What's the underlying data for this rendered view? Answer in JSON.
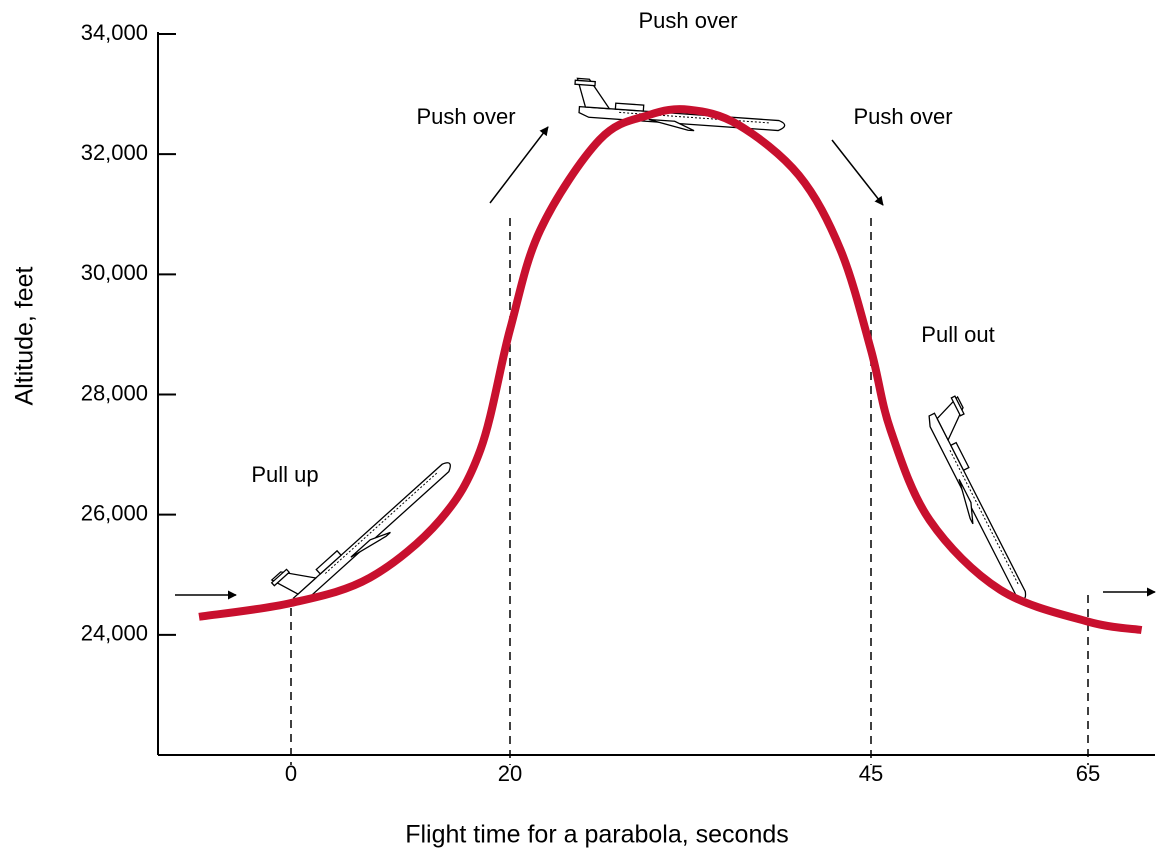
{
  "chart_data": {
    "type": "line",
    "x_label": "Flight time for a parabola, seconds",
    "y_label": "Altitude, feet",
    "annotations": [
      "Push over",
      "Push over",
      "Push over",
      "Pull up",
      "Pull out"
    ],
    "xlim": [
      -12,
      71
    ],
    "ylim": [
      22000,
      34000
    ],
    "xticks": [
      0,
      20,
      45,
      65
    ],
    "yticks": [
      {
        "value": 24000,
        "label": "24,000"
      },
      {
        "value": 26000,
        "label": "26,000"
      },
      {
        "value": 28000,
        "label": "28,000"
      },
      {
        "value": 30000,
        "label": "30,000"
      },
      {
        "value": 32000,
        "label": "32,000"
      },
      {
        "value": 34000,
        "label": "34,000"
      }
    ],
    "series": [
      {
        "color": "#c8102e",
        "x": [
          -8.3,
          0,
          7.2,
          13.6,
          17.3,
          20,
          22.1,
          26.2,
          29.6,
          32.4,
          35.8,
          40,
          42.9,
          45,
          46.8,
          50.4,
          56.9,
          65,
          69.8
        ],
        "values": [
          24300,
          24530,
          24950,
          25910,
          27080,
          29080,
          30740,
          32240,
          32650,
          32740,
          32490,
          31650,
          30400,
          28740,
          27410,
          25910,
          24750,
          24220,
          24080
        ]
      }
    ]
  }
}
